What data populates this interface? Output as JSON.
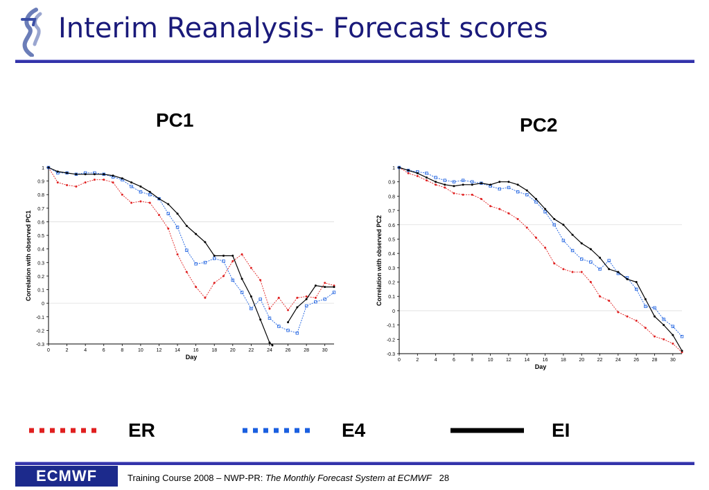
{
  "header": {
    "title": "Interim Reanalysis- Forecast scores"
  },
  "footer": {
    "logo_text": "ECMWF",
    "course": "Training Course 2008 – NWP-PR: ",
    "subtitle": "The Monthly Forecast System at ECMWF",
    "page": "28"
  },
  "legend": {
    "items": [
      {
        "label": "ER",
        "color": "#e02020",
        "style": "dotted"
      },
      {
        "label": "E4",
        "color": "#1a5fe0",
        "style": "dotted"
      },
      {
        "label": "EI",
        "color": "#000000",
        "style": "solid"
      }
    ]
  },
  "chart_data": [
    {
      "type": "line",
      "title": "PC1",
      "xlabel": "Day",
      "ylabel": "Correlation with observed PC1",
      "xlim": [
        0,
        31
      ],
      "ylim": [
        -0.3,
        1
      ],
      "xticks": [
        0,
        2,
        4,
        6,
        8,
        10,
        12,
        14,
        16,
        18,
        20,
        22,
        24,
        26,
        28,
        30
      ],
      "yticks": [
        -0.3,
        -0.2,
        -0.1,
        0,
        0.1,
        0.2,
        0.3,
        0.4,
        0.5,
        0.6,
        0.7,
        0.8,
        0.9,
        1
      ],
      "series": [
        {
          "name": "ER",
          "color": "#e02020",
          "marker": "circle",
          "dash": true,
          "x": [
            0,
            1,
            2,
            3,
            4,
            5,
            6,
            7,
            8,
            9,
            10,
            11,
            12,
            13,
            14,
            15,
            16,
            17,
            18,
            19,
            20,
            21,
            22,
            23,
            24,
            25,
            26,
            27,
            28,
            29,
            30,
            31
          ],
          "y": [
            1,
            0.89,
            0.87,
            0.86,
            0.89,
            0.91,
            0.91,
            0.89,
            0.8,
            0.74,
            0.75,
            0.74,
            0.65,
            0.55,
            0.36,
            0.23,
            0.12,
            0.04,
            0.15,
            0.2,
            0.31,
            0.36,
            0.26,
            0.17,
            -0.04,
            0.04,
            -0.05,
            0.04,
            0.05,
            0.04,
            0.15,
            0.13
          ]
        },
        {
          "name": "E4",
          "color": "#1a5fe0",
          "marker": "square",
          "dash": true,
          "x": [
            0,
            1,
            2,
            3,
            4,
            5,
            6,
            7,
            8,
            9,
            10,
            11,
            12,
            13,
            14,
            15,
            16,
            17,
            18,
            19,
            20,
            21,
            22,
            23,
            24,
            25,
            26,
            27,
            28,
            29,
            30,
            31
          ],
          "y": [
            1,
            0.96,
            0.96,
            0.95,
            0.96,
            0.96,
            0.95,
            0.93,
            0.91,
            0.86,
            0.82,
            0.8,
            0.77,
            0.66,
            0.56,
            0.39,
            0.29,
            0.3,
            0.33,
            0.31,
            0.17,
            0.08,
            -0.04,
            0.03,
            -0.11,
            -0.17,
            -0.2,
            -0.22,
            -0.02,
            0.01,
            0.03,
            0.08
          ]
        },
        {
          "name": "EI",
          "color": "#000000",
          "marker": "circle",
          "dash": false,
          "x": [
            0,
            1,
            2,
            3,
            4,
            5,
            6,
            7,
            8,
            9,
            10,
            11,
            12,
            13,
            14,
            15,
            16,
            17,
            18,
            19,
            20,
            21,
            22,
            23,
            24,
            24.3
          ],
          "y": [
            1,
            0.97,
            0.96,
            0.95,
            0.95,
            0.95,
            0.95,
            0.94,
            0.92,
            0.89,
            0.86,
            0.82,
            0.77,
            0.73,
            0.66,
            0.57,
            0.51,
            0.45,
            0.35,
            0.35,
            0.35,
            0.18,
            0.05,
            -0.12,
            -0.29,
            -0.31
          ]
        },
        {
          "name": "EI",
          "color": "#000000",
          "marker": "circle",
          "dash": false,
          "x": [
            26,
            27,
            28,
            29,
            30,
            31
          ],
          "y": [
            -0.14,
            -0.03,
            0.03,
            0.13,
            0.12,
            0.12
          ]
        }
      ]
    },
    {
      "type": "line",
      "title": "PC2",
      "xlabel": "Day",
      "ylabel": "Correlation with observed PC2",
      "xlim": [
        0,
        31
      ],
      "ylim": [
        -0.3,
        1
      ],
      "xticks": [
        0,
        2,
        4,
        6,
        8,
        10,
        12,
        14,
        16,
        18,
        20,
        22,
        24,
        26,
        28,
        30
      ],
      "yticks": [
        -0.3,
        -0.2,
        -0.1,
        0,
        0.1,
        0.2,
        0.3,
        0.4,
        0.5,
        0.6,
        0.7,
        0.8,
        0.9,
        1
      ],
      "series": [
        {
          "name": "ER",
          "color": "#e02020",
          "marker": "circle",
          "dash": true,
          "x": [
            0,
            1,
            2,
            3,
            4,
            5,
            6,
            7,
            8,
            9,
            10,
            11,
            12,
            13,
            14,
            15,
            16,
            17,
            18,
            19,
            20,
            21,
            22,
            23,
            24,
            25,
            26,
            27,
            28,
            29,
            30,
            31
          ],
          "y": [
            1,
            0.96,
            0.94,
            0.91,
            0.88,
            0.86,
            0.82,
            0.81,
            0.81,
            0.78,
            0.73,
            0.71,
            0.68,
            0.64,
            0.58,
            0.51,
            0.44,
            0.33,
            0.29,
            0.27,
            0.27,
            0.2,
            0.1,
            0.07,
            -0.01,
            -0.04,
            -0.07,
            -0.12,
            -0.18,
            -0.2,
            -0.23,
            -0.29
          ]
        },
        {
          "name": "E4",
          "color": "#1a5fe0",
          "marker": "square",
          "dash": true,
          "x": [
            0,
            1,
            2,
            3,
            4,
            5,
            6,
            7,
            8,
            9,
            10,
            11,
            12,
            13,
            14,
            15,
            16,
            17,
            18,
            19,
            20,
            21,
            22,
            23,
            24,
            25,
            26,
            27,
            28,
            29,
            30,
            31
          ],
          "y": [
            1,
            0.98,
            0.97,
            0.96,
            0.93,
            0.91,
            0.9,
            0.91,
            0.9,
            0.89,
            0.87,
            0.85,
            0.86,
            0.83,
            0.81,
            0.76,
            0.69,
            0.6,
            0.49,
            0.42,
            0.36,
            0.34,
            0.29,
            0.35,
            0.26,
            0.23,
            0.15,
            0.03,
            0.02,
            -0.06,
            -0.11,
            -0.18
          ]
        },
        {
          "name": "EI",
          "color": "#000000",
          "marker": "circle",
          "dash": false,
          "x": [
            0,
            1,
            2,
            3,
            4,
            5,
            6,
            7,
            8,
            9,
            10,
            11,
            12,
            13,
            14,
            15,
            16,
            17,
            18,
            19,
            20,
            21,
            22,
            23,
            24,
            25,
            26,
            27,
            28,
            29,
            30,
            31
          ],
          "y": [
            1,
            0.98,
            0.96,
            0.93,
            0.9,
            0.88,
            0.87,
            0.88,
            0.88,
            0.89,
            0.88,
            0.9,
            0.9,
            0.88,
            0.84,
            0.78,
            0.71,
            0.64,
            0.6,
            0.53,
            0.47,
            0.43,
            0.37,
            0.29,
            0.27,
            0.22,
            0.2,
            0.08,
            -0.04,
            -0.1,
            -0.17,
            -0.28
          ]
        }
      ]
    }
  ]
}
